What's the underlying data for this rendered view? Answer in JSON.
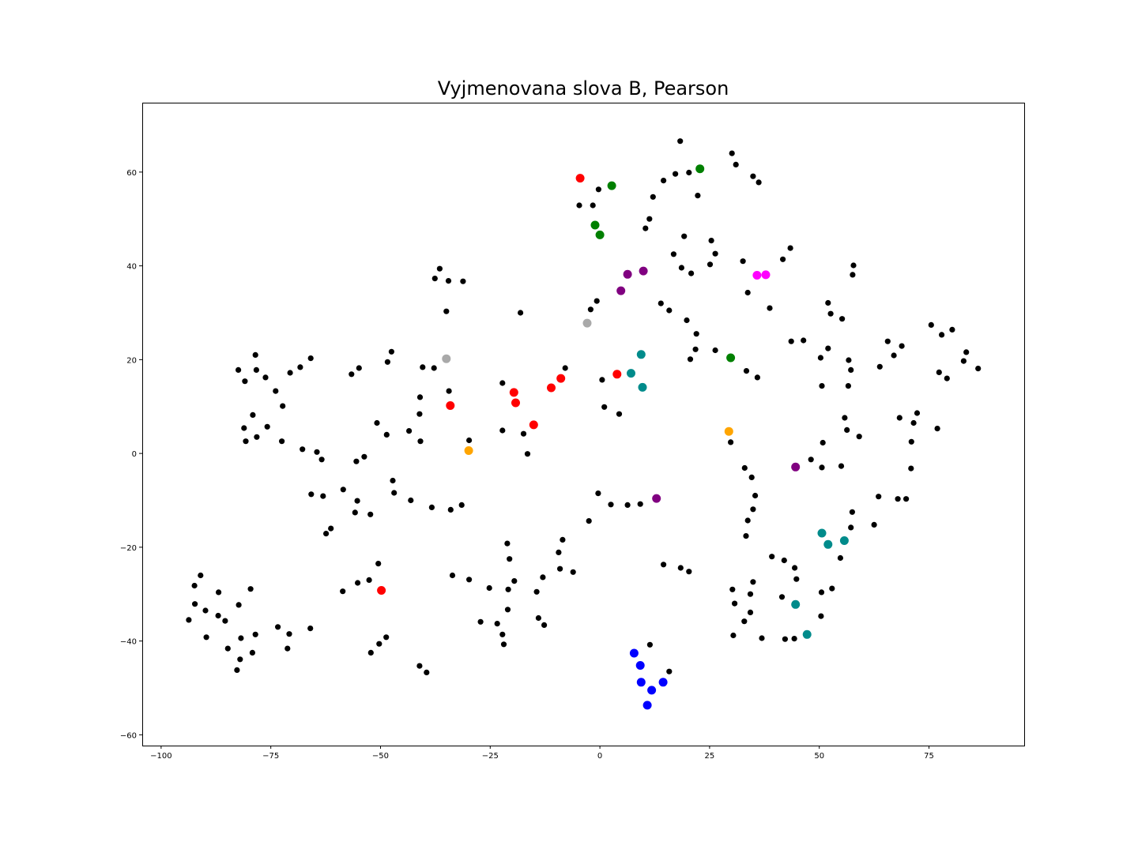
{
  "chart_data": {
    "type": "scatter",
    "title": "Vyjmenovana slova B, Pearson",
    "xlabel": "",
    "ylabel": "",
    "xlim": [
      -104.3,
      96.7
    ],
    "ylim": [
      -62.3,
      74.8
    ],
    "x_ticks": [
      -100,
      -75,
      -50,
      -25,
      0,
      25,
      50,
      75
    ],
    "y_ticks": [
      -60,
      -40,
      -20,
      0,
      20,
      40,
      60
    ],
    "grid": false,
    "colors": {
      "black": "#000000",
      "red": "#ff0000",
      "green": "#008000",
      "blue": "#0000ff",
      "purple": "#800080",
      "magenta": "#ff00ff",
      "teal": "#008b8b",
      "orange": "#ffa500",
      "gray": "#a9a9a9"
    },
    "series": [
      {
        "color": "black",
        "size": "small",
        "points": [
          [
            18.3,
            66.6
          ],
          [
            30.1,
            64.0
          ],
          [
            31.0,
            61.6
          ],
          [
            34.9,
            59.1
          ],
          [
            36.2,
            57.8
          ],
          [
            17.2,
            59.6
          ],
          [
            20.3,
            59.9
          ],
          [
            14.5,
            58.2
          ],
          [
            12.1,
            54.7
          ],
          [
            22.3,
            55.0
          ],
          [
            -0.3,
            56.3
          ],
          [
            -4.7,
            52.9
          ],
          [
            -1.6,
            52.9
          ],
          [
            11.3,
            50.0
          ],
          [
            10.4,
            48.0
          ],
          [
            19.2,
            46.3
          ],
          [
            25.4,
            45.4
          ],
          [
            26.3,
            42.6
          ],
          [
            16.8,
            42.5
          ],
          [
            25.1,
            40.3
          ],
          [
            18.6,
            39.6
          ],
          [
            20.8,
            38.4
          ],
          [
            32.6,
            41.0
          ],
          [
            41.7,
            41.4
          ],
          [
            43.4,
            43.8
          ],
          [
            57.8,
            40.1
          ],
          [
            57.6,
            38.1
          ],
          [
            33.7,
            34.3
          ],
          [
            38.7,
            31.0
          ],
          [
            -36.5,
            39.4
          ],
          [
            -37.6,
            37.3
          ],
          [
            -34.5,
            36.8
          ],
          [
            -31.2,
            36.7
          ],
          [
            -0.7,
            32.5
          ],
          [
            -2.1,
            30.7
          ],
          [
            -35.0,
            30.3
          ],
          [
            -18.1,
            30.0
          ],
          [
            13.9,
            32.0
          ],
          [
            15.8,
            30.5
          ],
          [
            19.8,
            28.4
          ],
          [
            22.0,
            25.5
          ],
          [
            21.8,
            22.2
          ],
          [
            26.3,
            22.0
          ],
          [
            20.6,
            20.1
          ],
          [
            33.4,
            17.6
          ],
          [
            35.9,
            16.2
          ],
          [
            43.6,
            23.9
          ],
          [
            46.4,
            24.1
          ],
          [
            52.0,
            32.1
          ],
          [
            52.6,
            29.8
          ],
          [
            55.2,
            28.7
          ],
          [
            52.0,
            22.4
          ],
          [
            50.3,
            20.4
          ],
          [
            56.7,
            19.9
          ],
          [
            57.2,
            17.8
          ],
          [
            50.6,
            14.4
          ],
          [
            56.6,
            14.4
          ],
          [
            75.5,
            27.4
          ],
          [
            77.9,
            25.3
          ],
          [
            80.3,
            26.4
          ],
          [
            65.6,
            23.9
          ],
          [
            67.0,
            20.9
          ],
          [
            68.8,
            22.9
          ],
          [
            63.8,
            18.5
          ],
          [
            83.5,
            21.6
          ],
          [
            82.9,
            19.7
          ],
          [
            86.2,
            18.1
          ],
          [
            77.3,
            17.3
          ],
          [
            79.1,
            16.0
          ],
          [
            -78.5,
            21.0
          ],
          [
            -82.4,
            17.8
          ],
          [
            -78.3,
            17.8
          ],
          [
            -76.2,
            16.2
          ],
          [
            -80.9,
            15.4
          ],
          [
            -73.9,
            13.3
          ],
          [
            -72.3,
            10.1
          ],
          [
            -79.1,
            8.2
          ],
          [
            -81.1,
            5.4
          ],
          [
            -75.8,
            5.7
          ],
          [
            -78.2,
            3.5
          ],
          [
            -80.7,
            2.6
          ],
          [
            -72.5,
            2.6
          ],
          [
            -70.6,
            17.2
          ],
          [
            -68.3,
            18.4
          ],
          [
            -65.9,
            20.3
          ],
          [
            -56.6,
            16.9
          ],
          [
            -54.9,
            18.2
          ],
          [
            -47.5,
            21.7
          ],
          [
            -48.4,
            19.5
          ],
          [
            -40.4,
            18.4
          ],
          [
            -37.8,
            18.2
          ],
          [
            -41.0,
            12.0
          ],
          [
            -41.1,
            8.4
          ],
          [
            -34.4,
            13.3
          ],
          [
            -50.8,
            6.5
          ],
          [
            -48.6,
            4.0
          ],
          [
            -43.5,
            4.8
          ],
          [
            -40.9,
            2.6
          ],
          [
            -29.8,
            2.8
          ],
          [
            -22.2,
            15.0
          ],
          [
            -22.2,
            4.9
          ],
          [
            -17.4,
            4.2
          ],
          [
            -16.5,
            -0.1
          ],
          [
            -7.9,
            18.2
          ],
          [
            0.5,
            15.7
          ],
          [
            1.0,
            9.9
          ],
          [
            4.4,
            8.4
          ],
          [
            -67.8,
            0.9
          ],
          [
            -64.5,
            0.3
          ],
          [
            -63.4,
            -1.3
          ],
          [
            -55.5,
            -1.7
          ],
          [
            -53.7,
            -0.7
          ],
          [
            -65.8,
            -8.7
          ],
          [
            -63.1,
            -9.1
          ],
          [
            -58.5,
            -7.7
          ],
          [
            -55.3,
            -10.1
          ],
          [
            -55.8,
            -12.6
          ],
          [
            -52.3,
            -13.0
          ],
          [
            -61.3,
            -16.0
          ],
          [
            -62.4,
            -17.1
          ],
          [
            -47.2,
            -5.8
          ],
          [
            -46.9,
            -8.4
          ],
          [
            -43.1,
            -10.0
          ],
          [
            -38.3,
            -11.5
          ],
          [
            -34.0,
            -12.0
          ],
          [
            -31.5,
            -11.0
          ],
          [
            -0.4,
            -8.5
          ],
          [
            2.5,
            -10.9
          ],
          [
            6.3,
            -11.0
          ],
          [
            9.2,
            -10.8
          ],
          [
            -2.5,
            -14.4
          ],
          [
            29.8,
            2.4
          ],
          [
            33.0,
            -3.1
          ],
          [
            34.6,
            -5.1
          ],
          [
            48.1,
            -1.3
          ],
          [
            50.6,
            -3.0
          ],
          [
            55.0,
            -2.7
          ],
          [
            35.4,
            -9.0
          ],
          [
            34.9,
            -11.9
          ],
          [
            33.7,
            -14.3
          ],
          [
            33.3,
            -17.6
          ],
          [
            56.3,
            5.0
          ],
          [
            55.8,
            7.6
          ],
          [
            59.1,
            3.6
          ],
          [
            50.8,
            2.3
          ],
          [
            68.3,
            7.6
          ],
          [
            71.5,
            6.5
          ],
          [
            72.3,
            8.6
          ],
          [
            71.0,
            2.5
          ],
          [
            76.9,
            5.3
          ],
          [
            70.9,
            -3.2
          ],
          [
            63.5,
            -9.2
          ],
          [
            67.9,
            -9.7
          ],
          [
            69.8,
            -9.7
          ],
          [
            57.5,
            -12.5
          ],
          [
            57.2,
            -15.8
          ],
          [
            62.5,
            -15.2
          ],
          [
            -21.1,
            -19.2
          ],
          [
            -20.6,
            -22.5
          ],
          [
            -20.9,
            -29.0
          ],
          [
            -19.5,
            -27.2
          ],
          [
            -8.5,
            -18.4
          ],
          [
            -9.4,
            -21.1
          ],
          [
            -9.1,
            -24.6
          ],
          [
            -6.1,
            -25.3
          ],
          [
            -13.0,
            -26.4
          ],
          [
            -14.4,
            -29.5
          ],
          [
            -21.0,
            -33.3
          ],
          [
            -25.2,
            -28.7
          ],
          [
            -29.8,
            -26.9
          ],
          [
            -33.6,
            -26.0
          ],
          [
            -23.4,
            -36.3
          ],
          [
            -27.2,
            -35.9
          ],
          [
            -22.2,
            -38.6
          ],
          [
            -21.9,
            -40.7
          ],
          [
            -14.0,
            -35.1
          ],
          [
            -12.7,
            -36.6
          ],
          [
            14.5,
            -23.7
          ],
          [
            18.4,
            -24.4
          ],
          [
            20.3,
            -25.2
          ],
          [
            11.4,
            -40.8
          ],
          [
            15.8,
            -46.5
          ],
          [
            -50.5,
            -23.5
          ],
          [
            -52.6,
            -27.0
          ],
          [
            -55.2,
            -27.6
          ],
          [
            -58.6,
            -29.4
          ],
          [
            -48.7,
            -39.2
          ],
          [
            -50.3,
            -40.6
          ],
          [
            -52.2,
            -42.5
          ],
          [
            -41.1,
            -45.3
          ],
          [
            -39.5,
            -46.7
          ],
          [
            -91.0,
            -26.0
          ],
          [
            -92.4,
            -28.2
          ],
          [
            -86.9,
            -29.6
          ],
          [
            -79.6,
            -28.9
          ],
          [
            -82.3,
            -32.3
          ],
          [
            -92.3,
            -32.1
          ],
          [
            -89.9,
            -33.5
          ],
          [
            -87.0,
            -34.6
          ],
          [
            -85.4,
            -35.7
          ],
          [
            -93.7,
            -35.5
          ],
          [
            -89.7,
            -39.2
          ],
          [
            -81.8,
            -39.4
          ],
          [
            -78.5,
            -38.6
          ],
          [
            -84.8,
            -41.6
          ],
          [
            -79.2,
            -42.5
          ],
          [
            -82.0,
            -43.9
          ],
          [
            -82.7,
            -46.2
          ],
          [
            -73.4,
            -37.0
          ],
          [
            -70.8,
            -38.5
          ],
          [
            -71.2,
            -41.6
          ],
          [
            -66.0,
            -37.3
          ],
          [
            30.2,
            -29.0
          ],
          [
            30.7,
            -32.0
          ],
          [
            34.9,
            -27.4
          ],
          [
            34.3,
            -30.0
          ],
          [
            34.3,
            -33.9
          ],
          [
            32.9,
            -35.8
          ],
          [
            30.4,
            -38.8
          ],
          [
            36.9,
            -39.4
          ],
          [
            39.2,
            -22.0
          ],
          [
            42.0,
            -22.8
          ],
          [
            44.4,
            -24.4
          ],
          [
            44.8,
            -26.8
          ],
          [
            41.5,
            -30.6
          ],
          [
            42.2,
            -39.6
          ],
          [
            44.3,
            -39.5
          ],
          [
            50.5,
            -29.6
          ],
          [
            52.9,
            -28.8
          ],
          [
            54.8,
            -22.3
          ],
          [
            50.4,
            -34.7
          ]
        ]
      },
      {
        "color": "red",
        "size": "large",
        "points": [
          [
            -4.5,
            58.7
          ],
          [
            -34.1,
            10.2
          ],
          [
            -19.6,
            13.0
          ],
          [
            -19.2,
            10.8
          ],
          [
            -11.1,
            14.0
          ],
          [
            -8.9,
            16.0
          ],
          [
            -15.1,
            6.1
          ],
          [
            3.9,
            16.9
          ],
          [
            -49.8,
            -29.2
          ]
        ]
      },
      {
        "color": "green",
        "size": "large",
        "points": [
          [
            2.7,
            57.1
          ],
          [
            -1.1,
            48.7
          ],
          [
            0.0,
            46.6
          ],
          [
            22.8,
            60.7
          ],
          [
            29.8,
            20.4
          ]
        ]
      },
      {
        "color": "blue",
        "size": "large",
        "points": [
          [
            7.8,
            -42.6
          ],
          [
            9.2,
            -45.2
          ],
          [
            9.4,
            -48.8
          ],
          [
            14.4,
            -48.8
          ],
          [
            11.8,
            -50.5
          ],
          [
            10.8,
            -53.7
          ]
        ]
      },
      {
        "color": "purple",
        "size": "large",
        "points": [
          [
            6.3,
            38.2
          ],
          [
            9.9,
            38.9
          ],
          [
            4.8,
            34.7
          ],
          [
            44.6,
            -2.9
          ],
          [
            12.9,
            -9.6
          ]
        ]
      },
      {
        "color": "magenta",
        "size": "large",
        "points": [
          [
            35.8,
            38.0
          ],
          [
            37.8,
            38.1
          ]
        ]
      },
      {
        "color": "teal",
        "size": "large",
        "points": [
          [
            9.4,
            21.1
          ],
          [
            7.1,
            17.1
          ],
          [
            9.7,
            14.1
          ],
          [
            50.6,
            -17.0
          ],
          [
            52.0,
            -19.4
          ],
          [
            55.7,
            -18.6
          ],
          [
            44.6,
            -32.2
          ],
          [
            47.2,
            -38.6
          ]
        ]
      },
      {
        "color": "orange",
        "size": "large",
        "points": [
          [
            -29.9,
            0.6
          ],
          [
            29.4,
            4.7
          ]
        ]
      },
      {
        "color": "gray",
        "size": "large",
        "points": [
          [
            -2.9,
            27.8
          ],
          [
            -35.0,
            20.2
          ]
        ]
      }
    ]
  }
}
